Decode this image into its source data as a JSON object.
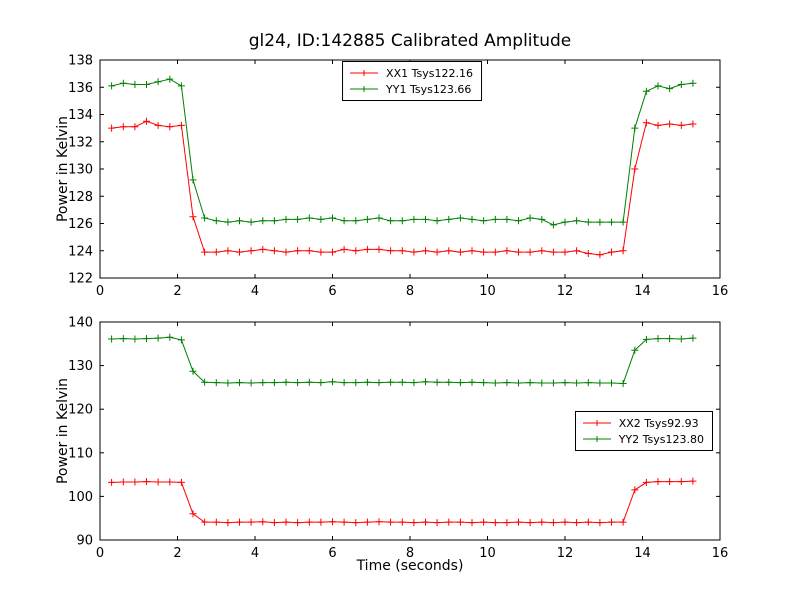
{
  "title": "gl24, ID:142885 Calibrated Amplitude",
  "colors": {
    "red": "#ff0000",
    "green": "#008000",
    "axis": "#000000",
    "background": "#ffffff"
  },
  "chart_data": [
    {
      "type": "line",
      "position": "top",
      "title": "gl24, ID:142885 Calibrated Amplitude",
      "xlabel": "",
      "ylabel": "Power in Kelvin",
      "xlim": [
        0,
        16
      ],
      "ylim": [
        122,
        138
      ],
      "xticks": [
        0,
        2,
        4,
        6,
        8,
        10,
        12,
        14,
        16
      ],
      "yticks": [
        122,
        124,
        126,
        128,
        130,
        132,
        134,
        136,
        138
      ],
      "grid": false,
      "legend_position": "upper center",
      "x": [
        0.3,
        0.6,
        0.9,
        1.2,
        1.5,
        1.8,
        2.1,
        2.4,
        2.7,
        3.0,
        3.3,
        3.6,
        3.9,
        4.2,
        4.5,
        4.8,
        5.1,
        5.4,
        5.7,
        6.0,
        6.3,
        6.6,
        6.9,
        7.2,
        7.5,
        7.8,
        8.1,
        8.4,
        8.7,
        9.0,
        9.3,
        9.6,
        9.9,
        10.2,
        10.5,
        10.8,
        11.1,
        11.4,
        11.7,
        12.0,
        12.3,
        12.6,
        12.9,
        13.2,
        13.5,
        13.8,
        14.1,
        14.4,
        14.7,
        15.0,
        15.3
      ],
      "series": [
        {
          "name": "XX1 Tsys122.16",
          "color": "#ff0000",
          "marker": "+",
          "values": [
            133.0,
            133.1,
            133.1,
            133.5,
            133.2,
            133.1,
            133.2,
            126.5,
            123.9,
            123.9,
            124.0,
            123.9,
            124.0,
            124.1,
            124.0,
            123.9,
            124.0,
            124.0,
            123.9,
            123.9,
            124.1,
            124.0,
            124.1,
            124.1,
            124.0,
            124.0,
            123.9,
            124.0,
            123.9,
            124.0,
            123.9,
            124.0,
            123.9,
            123.9,
            124.0,
            123.9,
            123.9,
            124.0,
            123.9,
            123.9,
            124.0,
            123.8,
            123.7,
            123.9,
            124.0,
            130.0,
            133.4,
            133.2,
            133.3,
            133.2,
            133.3
          ]
        },
        {
          "name": "YY1 Tsys123.66",
          "color": "#008000",
          "marker": "+",
          "values": [
            136.1,
            136.3,
            136.2,
            136.2,
            136.4,
            136.6,
            136.1,
            129.2,
            126.4,
            126.2,
            126.1,
            126.2,
            126.1,
            126.2,
            126.2,
            126.3,
            126.3,
            126.4,
            126.3,
            126.4,
            126.2,
            126.2,
            126.3,
            126.4,
            126.2,
            126.2,
            126.3,
            126.3,
            126.2,
            126.3,
            126.4,
            126.3,
            126.2,
            126.3,
            126.3,
            126.2,
            126.4,
            126.3,
            125.9,
            126.1,
            126.2,
            126.1,
            126.1,
            126.1,
            126.1,
            133.0,
            135.7,
            136.1,
            135.9,
            136.2,
            136.3
          ]
        }
      ]
    },
    {
      "type": "line",
      "position": "bottom",
      "title": "",
      "xlabel": "Time (seconds)",
      "ylabel": "Power in Kelvin",
      "xlim": [
        0,
        16
      ],
      "ylim": [
        90,
        140
      ],
      "xticks": [
        0,
        2,
        4,
        6,
        8,
        10,
        12,
        14,
        16
      ],
      "yticks": [
        90,
        100,
        110,
        120,
        130,
        140
      ],
      "grid": false,
      "legend_position": "center right",
      "x": [
        0.3,
        0.6,
        0.9,
        1.2,
        1.5,
        1.8,
        2.1,
        2.4,
        2.7,
        3.0,
        3.3,
        3.6,
        3.9,
        4.2,
        4.5,
        4.8,
        5.1,
        5.4,
        5.7,
        6.0,
        6.3,
        6.6,
        6.9,
        7.2,
        7.5,
        7.8,
        8.1,
        8.4,
        8.7,
        9.0,
        9.3,
        9.6,
        9.9,
        10.2,
        10.5,
        10.8,
        11.1,
        11.4,
        11.7,
        12.0,
        12.3,
        12.6,
        12.9,
        13.2,
        13.5,
        13.8,
        14.1,
        14.4,
        14.7,
        15.0,
        15.3
      ],
      "series": [
        {
          "name": "XX2 Tsys92.93",
          "color": "#ff0000",
          "marker": "+",
          "values": [
            103.2,
            103.3,
            103.3,
            103.4,
            103.3,
            103.3,
            103.2,
            96.0,
            94.1,
            94.1,
            94.0,
            94.1,
            94.1,
            94.2,
            94.0,
            94.1,
            94.0,
            94.1,
            94.1,
            94.2,
            94.1,
            94.0,
            94.1,
            94.2,
            94.1,
            94.1,
            94.0,
            94.1,
            94.0,
            94.1,
            94.1,
            94.0,
            94.1,
            94.0,
            94.0,
            94.1,
            94.0,
            94.1,
            94.0,
            94.1,
            94.0,
            94.1,
            94.0,
            94.1,
            94.1,
            101.5,
            103.2,
            103.4,
            103.4,
            103.4,
            103.5
          ]
        },
        {
          "name": "YY2 Tsys123.80",
          "color": "#008000",
          "marker": "+",
          "values": [
            136.1,
            136.2,
            136.1,
            136.2,
            136.3,
            136.5,
            135.9,
            128.7,
            126.2,
            126.1,
            126.0,
            126.1,
            126.0,
            126.1,
            126.1,
            126.2,
            126.1,
            126.2,
            126.1,
            126.3,
            126.1,
            126.1,
            126.2,
            126.1,
            126.2,
            126.2,
            126.1,
            126.3,
            126.2,
            126.2,
            126.1,
            126.2,
            126.1,
            126.0,
            126.1,
            126.0,
            126.1,
            126.0,
            126.0,
            126.1,
            126.0,
            126.1,
            126.0,
            126.0,
            125.9,
            133.5,
            136.0,
            136.2,
            136.2,
            136.1,
            136.3
          ]
        }
      ]
    }
  ]
}
